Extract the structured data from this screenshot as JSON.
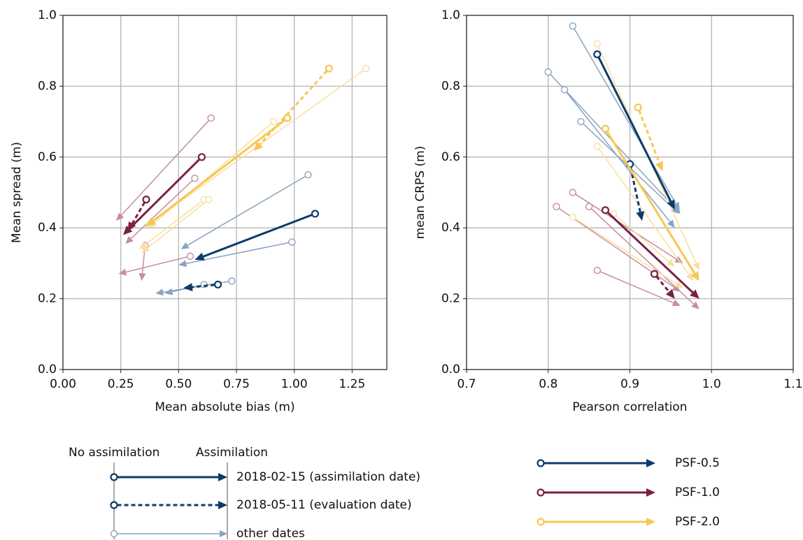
{
  "chart_data": [
    {
      "type": "arrow",
      "xlabel": "Mean absolute bias (m)",
      "ylabel": "Mean spread (m)",
      "xlim": [
        0,
        1.4
      ],
      "ylim": [
        0,
        1
      ],
      "xticks": [
        {
          "value": 0,
          "label": "0.00"
        },
        {
          "value": 0.25,
          "label": "0.25"
        },
        {
          "value": 0.5,
          "label": "0.50"
        },
        {
          "value": 0.75,
          "label": "0.75"
        },
        {
          "value": 1,
          "label": "1.00"
        },
        {
          "value": 1.25,
          "label": "1.25"
        }
      ],
      "yticks": [
        {
          "value": 0,
          "label": "0.0"
        },
        0.2,
        0.4,
        0.6,
        0.8,
        {
          "value": 1,
          "label": "1.0"
        }
      ],
      "grid": true,
      "arrows": [
        {
          "series": 0,
          "style": 2,
          "x": [
            1.06,
            0.51
          ],
          "y": [
            0.55,
            0.34
          ]
        },
        {
          "series": 0,
          "style": 2,
          "x": [
            0.99,
            0.5
          ],
          "y": [
            0.36,
            0.295
          ]
        },
        {
          "series": 0,
          "style": 2,
          "x": [
            0.73,
            0.4
          ],
          "y": [
            0.25,
            0.215
          ]
        },
        {
          "series": 0,
          "style": 2,
          "x": [
            0.61,
            0.44
          ],
          "y": [
            0.24,
            0.215
          ]
        },
        {
          "series": 1,
          "style": 2,
          "x": [
            0.64,
            0.23
          ],
          "y": [
            0.71,
            0.42
          ]
        },
        {
          "series": 1,
          "style": 2,
          "x": [
            0.57,
            0.27
          ],
          "y": [
            0.54,
            0.355
          ]
        },
        {
          "series": 1,
          "style": 2,
          "x": [
            0.55,
            0.24
          ],
          "y": [
            0.32,
            0.27
          ]
        },
        {
          "series": 1,
          "style": 2,
          "x": [
            0.355,
            0.34
          ],
          "y": [
            0.35,
            0.25
          ]
        },
        {
          "series": 2,
          "style": 2,
          "x": [
            1.31,
            0.35
          ],
          "y": [
            0.85,
            0.4
          ]
        },
        {
          "series": 2,
          "style": 2,
          "x": [
            0.91,
            0.37
          ],
          "y": [
            0.7,
            0.4
          ]
        },
        {
          "series": 2,
          "style": 2,
          "x": [
            0.61,
            0.33
          ],
          "y": [
            0.48,
            0.34
          ]
        },
        {
          "series": 2,
          "style": 2,
          "x": [
            0.63,
            0.34
          ],
          "y": [
            0.48,
            0.33
          ]
        },
        {
          "series": 0,
          "style": 0,
          "x": [
            1.09,
            0.57
          ],
          "y": [
            0.44,
            0.31
          ]
        },
        {
          "series": 0,
          "style": 1,
          "x": [
            0.67,
            0.52
          ],
          "y": [
            0.24,
            0.23
          ]
        },
        {
          "series": 1,
          "style": 0,
          "x": [
            0.6,
            0.26
          ],
          "y": [
            0.6,
            0.38
          ]
        },
        {
          "series": 1,
          "style": 1,
          "x": [
            0.36,
            0.28
          ],
          "y": [
            0.48,
            0.39
          ]
        },
        {
          "series": 2,
          "style": 0,
          "x": [
            0.97,
            0.36
          ],
          "y": [
            0.71,
            0.405
          ]
        },
        {
          "series": 2,
          "style": 1,
          "x": [
            1.15,
            0.825
          ],
          "y": [
            0.85,
            0.617
          ]
        }
      ]
    },
    {
      "type": "arrow",
      "xlabel": "Pearson correlation",
      "ylabel": "mean CRPS (m)",
      "xlim": [
        0.7,
        1.1
      ],
      "ylim": [
        0,
        1
      ],
      "xticks": [
        0.7,
        0.8,
        0.9,
        {
          "value": 1,
          "label": "1.0"
        },
        1.1
      ],
      "yticks": [
        {
          "value": 0,
          "label": "0.0"
        },
        0.2,
        0.4,
        0.6,
        0.8,
        {
          "value": 1,
          "label": "1.0"
        }
      ],
      "grid": true,
      "arrows": [
        {
          "series": 0,
          "style": 2,
          "x": [
            0.83,
            0.961
          ],
          "y": [
            0.97,
            0.45
          ]
        },
        {
          "series": 0,
          "style": 2,
          "x": [
            0.8,
            0.962
          ],
          "y": [
            0.84,
            0.44
          ]
        },
        {
          "series": 0,
          "style": 2,
          "x": [
            0.82,
            0.955
          ],
          "y": [
            0.79,
            0.4
          ]
        },
        {
          "series": 0,
          "style": 2,
          "x": [
            0.84,
            0.96
          ],
          "y": [
            0.7,
            0.44
          ]
        },
        {
          "series": 1,
          "style": 2,
          "x": [
            0.83,
            0.965
          ],
          "y": [
            0.5,
            0.3
          ]
        },
        {
          "series": 1,
          "style": 2,
          "x": [
            0.81,
            0.962
          ],
          "y": [
            0.46,
            0.22
          ]
        },
        {
          "series": 1,
          "style": 2,
          "x": [
            0.85,
            0.985
          ],
          "y": [
            0.46,
            0.17
          ]
        },
        {
          "series": 1,
          "style": 2,
          "x": [
            0.86,
            0.962
          ],
          "y": [
            0.28,
            0.18
          ]
        },
        {
          "series": 2,
          "style": 2,
          "x": [
            0.86,
            0.985
          ],
          "y": [
            0.92,
            0.28
          ]
        },
        {
          "series": 2,
          "style": 2,
          "x": [
            0.86,
            0.978
          ],
          "y": [
            0.63,
            0.25
          ]
        },
        {
          "series": 2,
          "style": 2,
          "x": [
            0.83,
            0.965
          ],
          "y": [
            0.43,
            0.23
          ]
        },
        {
          "series": 2,
          "style": 2,
          "x": [
            0.88,
            0.955
          ],
          "y": [
            0.44,
            0.29
          ]
        },
        {
          "series": 0,
          "style": 0,
          "x": [
            0.86,
            0.955
          ],
          "y": [
            0.89,
            0.452
          ]
        },
        {
          "series": 0,
          "style": 1,
          "x": [
            0.9,
            0.915
          ],
          "y": [
            0.58,
            0.42
          ]
        },
        {
          "series": 1,
          "style": 0,
          "x": [
            0.87,
            0.985
          ],
          "y": [
            0.45,
            0.2
          ]
        },
        {
          "series": 1,
          "style": 1,
          "x": [
            0.93,
            0.955
          ],
          "y": [
            0.27,
            0.2
          ]
        },
        {
          "series": 2,
          "style": 0,
          "x": [
            0.87,
            0.985
          ],
          "y": [
            0.68,
            0.25
          ]
        },
        {
          "series": 2,
          "style": 1,
          "x": [
            0.91,
            0.94
          ],
          "y": [
            0.74,
            0.56
          ]
        }
      ]
    }
  ],
  "legend": {
    "header": [
      "No assimilation",
      "Assimilation"
    ],
    "styles": [
      {
        "label": "2018-02-15 (assimilation date)",
        "dashed": false,
        "bold": true
      },
      {
        "label": "2018-05-11 (evaluation date)",
        "dashed": true,
        "bold": true
      },
      {
        "label": "other dates",
        "dashed": false,
        "bold": false
      }
    ],
    "series": [
      {
        "name": "PSF-0.5",
        "color": "#0d3b6b",
        "light_color": "#8aa3c0"
      },
      {
        "name": "PSF-1.0",
        "color": "#7b1f45",
        "light_color": "#c58da3"
      },
      {
        "name": "PSF-2.0",
        "color": "#f6c756",
        "light_color": "#f9dfa0"
      }
    ]
  }
}
